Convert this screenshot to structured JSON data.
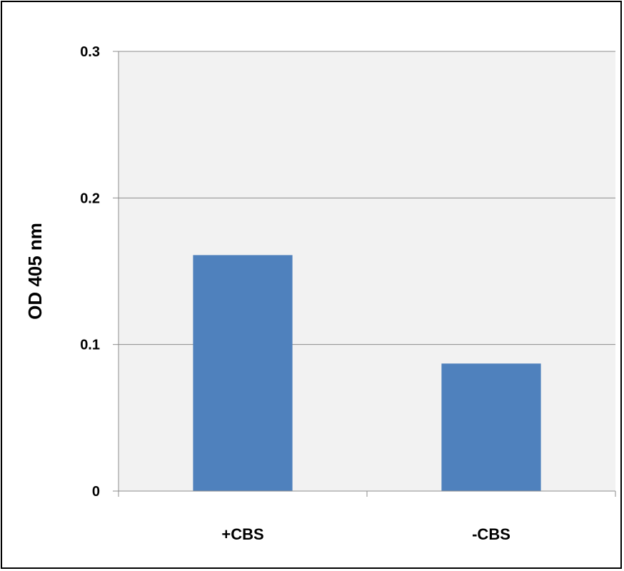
{
  "chart_data": {
    "type": "bar",
    "title": "",
    "xlabel": "",
    "ylabel": "OD 405 nm",
    "categories": [
      "+CBS",
      "-CBS"
    ],
    "values": [
      0.161,
      0.087
    ],
    "ylim": [
      0,
      0.3
    ],
    "yticks": [
      "0",
      "0.1",
      "0.2",
      "0.3"
    ],
    "grid": true,
    "legend": "none",
    "colors": {
      "bar": "#4F81BD",
      "plot_background": "#F2F2F2",
      "gridline": "#8C8C8C",
      "frame": "#000000"
    }
  }
}
